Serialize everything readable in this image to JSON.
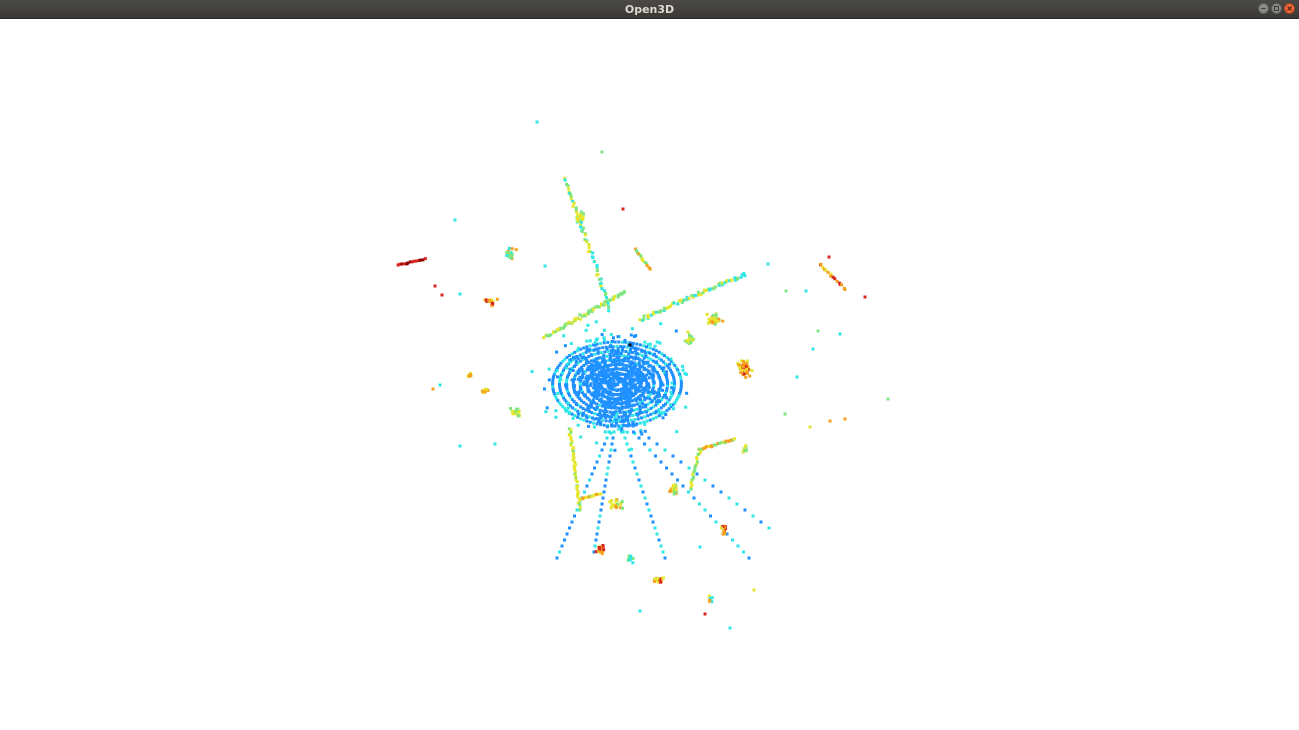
{
  "window": {
    "title": "Open3D",
    "controls": {
      "minimize_icon": "minimize-icon",
      "maximize_icon": "maximize-icon",
      "close_icon": "close-icon"
    }
  },
  "viewer": {
    "background_color": "#ffffff",
    "colormap": "jet",
    "colors": {
      "near": "#1e90ff",
      "cyan": "#2ee6e6",
      "green": "#7fe67f",
      "yellow": "#e6e62e",
      "orange": "#f5a21e",
      "red": "#d9261e",
      "dark_red": "#8c0000"
    }
  }
}
